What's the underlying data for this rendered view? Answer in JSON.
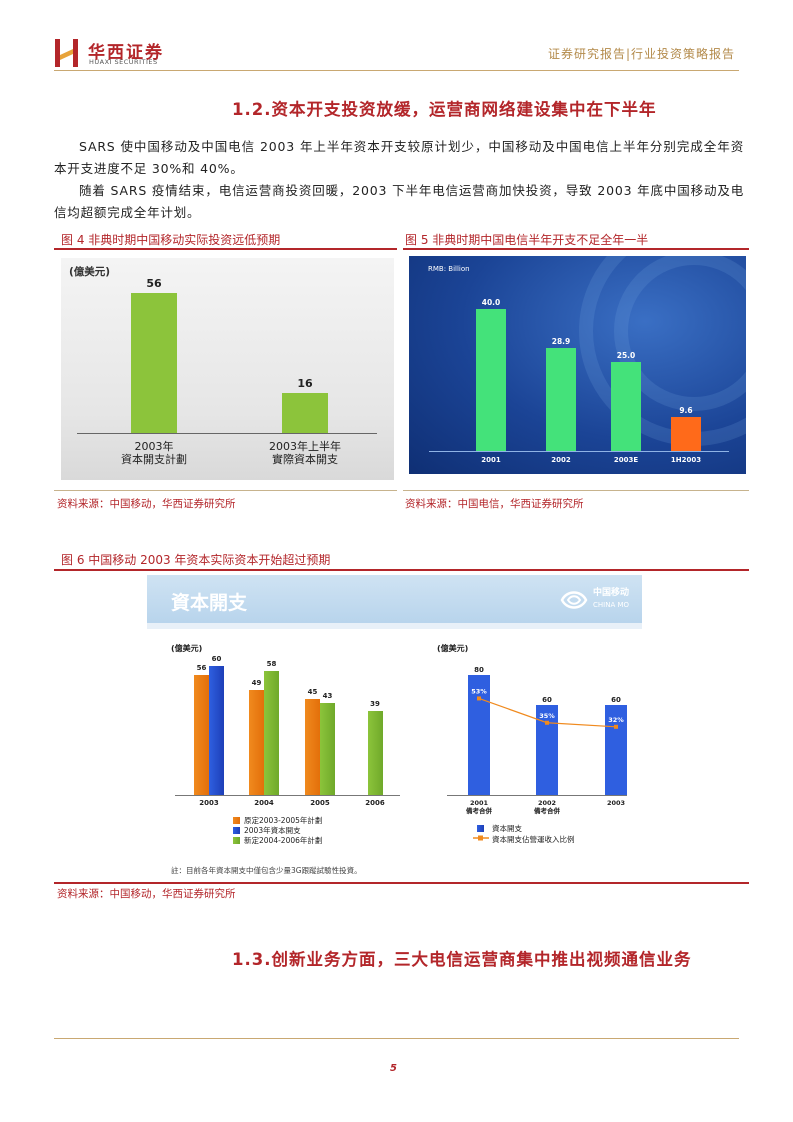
{
  "header": {
    "logo_cn": "华西证券",
    "logo_en": "HUAXI SECURITIES",
    "report_type": "证券研究报告|行业投资策略报告"
  },
  "section_1_2": {
    "heading": "1.2.资本开支投资放缓，运营商网络建设集中在下半年",
    "para1": "SARS 使中国移动及中国电信 2003 年上半年资本开支较原计划少，中国移动及中国电信上半年分别完成全年资本开支进度不足 30%和 40%。",
    "para2": "随着 SARS 疫情结束，电信运营商投资回暖，2003 下半年电信运营商加快投资，导致 2003 年底中国移动及电信均超额完成全年计划。"
  },
  "fig4": {
    "label": "图 4  非典时期中国移动实际投资远低预期",
    "source": "资料来源：中国移动，华西证券研究所",
    "chart_data": {
      "type": "bar",
      "title": "",
      "ylabel": "(億美元)",
      "categories": [
        "2003年\n資本開支計劃",
        "2003年上半年\n實際資本開支"
      ],
      "values": [
        56,
        16
      ],
      "colors": [
        "#8cc43b"
      ],
      "ylim": [
        0,
        60
      ]
    }
  },
  "fig5": {
    "label": "图 5  非典时期中国电信半年开支不足全年一半",
    "source": "资料来源：中国电信，华西证券研究所",
    "chart_data": {
      "type": "bar",
      "title": "",
      "ylabel": "RMB: Billion",
      "categories": [
        "2001",
        "2002",
        "2003E",
        "1H2003"
      ],
      "values": [
        40.0,
        28.9,
        25.0,
        9.6
      ],
      "value_labels": [
        "40.0",
        "28.9",
        "25.0",
        "9.6"
      ],
      "colors": [
        "#44e27a",
        "#44e27a",
        "#44e27a",
        "#ff6a1a"
      ],
      "ylim": [
        0,
        45
      ]
    }
  },
  "fig6": {
    "label": "图 6  中国移动 2003 年资本实际资本开始超过预期",
    "source": "资料来源：中国移动，华西证券研究所",
    "banner_title": "資本開支",
    "company_cn": "中国移动",
    "company_en": "CHINA MO",
    "note": "註：目前各年資本開支中僅包含少量3G跟蹤試驗性投資。",
    "chart_data": [
      {
        "type": "bar",
        "title": "",
        "ylabel": "(億美元)",
        "categories": [
          "2003",
          "2004",
          "2005",
          "2006"
        ],
        "series": [
          {
            "name": "原定2003-2005年計劃",
            "values": [
              56,
              49,
              45,
              null
            ],
            "color": "#f08a1e"
          },
          {
            "name": "2003年資本開支",
            "values": [
              60,
              null,
              null,
              null
            ],
            "color": "#2f5fe0"
          },
          {
            "name": "新定2004-2006年計劃",
            "values": [
              null,
              58,
              43,
              39
            ],
            "color": "#8cc43b"
          }
        ],
        "ylim": [
          0,
          70
        ]
      },
      {
        "type": "bar",
        "title": "",
        "ylabel": "(億美元)",
        "categories": [
          "2001\n備考合併",
          "2002\n備考合併",
          "2003"
        ],
        "series": [
          {
            "name": "資本開支",
            "values": [
              80,
              60,
              60
            ],
            "color": "#2f5fe0"
          },
          {
            "name": "資本開支佔營運收入比例",
            "values": [
              53,
              35,
              32
            ],
            "value_labels": [
              "53%",
              "35%",
              "32%"
            ],
            "color": "#f08a1e",
            "type": "line"
          }
        ],
        "ylim": [
          0,
          90
        ]
      }
    ]
  },
  "section_1_3": {
    "heading": "1.3.创新业务方面，三大电信运营商集中推出视频通信业务"
  },
  "footer": {
    "page_number": "5"
  }
}
